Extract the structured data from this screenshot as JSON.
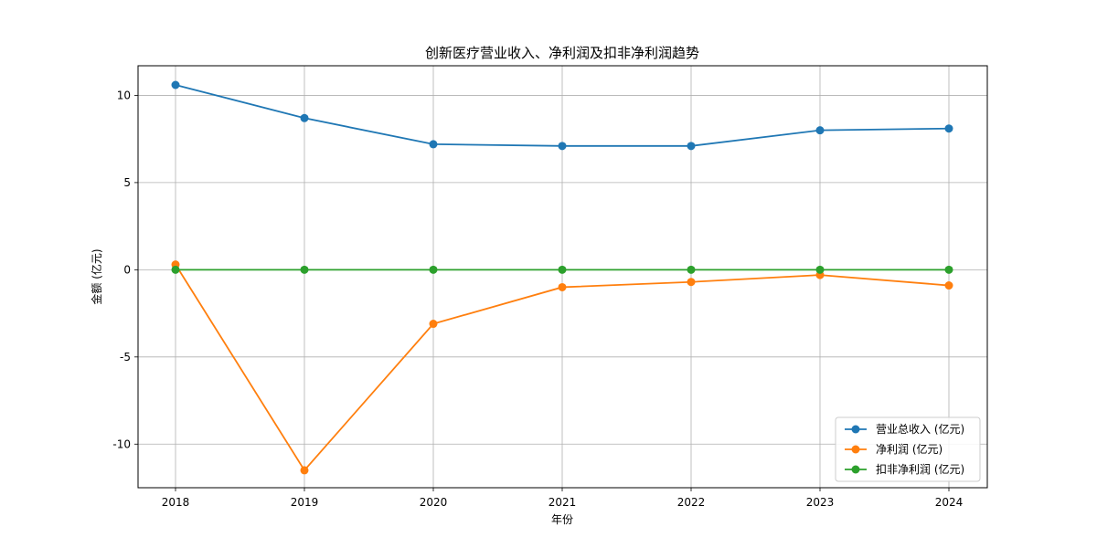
{
  "chart_data": {
    "type": "line",
    "title": "创新医疗营业收入、净利润及扣非净利润趋势",
    "xlabel": "年份",
    "ylabel": "金额 (亿元)",
    "x": [
      "2018",
      "2019",
      "2020",
      "2021",
      "2022",
      "2023",
      "2024"
    ],
    "ylim": [
      -12.5,
      11.7
    ],
    "yticks": [
      10,
      5,
      0,
      -5,
      -10
    ],
    "ytick_labels": [
      "10",
      "5",
      "0",
      "-5",
      "-10"
    ],
    "grid": true,
    "legend_position": "bottom-right",
    "series": [
      {
        "name": "营业总收入 (亿元)",
        "color": "#1f77b4",
        "values": [
          10.6,
          8.7,
          7.2,
          7.1,
          7.1,
          8.0,
          8.1
        ]
      },
      {
        "name": "净利润 (亿元)",
        "color": "#ff7f0e",
        "values": [
          0.3,
          -11.5,
          -3.1,
          -1.0,
          -0.7,
          -0.3,
          -0.9
        ]
      },
      {
        "name": "扣非净利润 (亿元)",
        "color": "#2ca02c",
        "values": [
          0,
          0,
          0,
          0,
          0,
          0,
          0
        ]
      }
    ]
  }
}
